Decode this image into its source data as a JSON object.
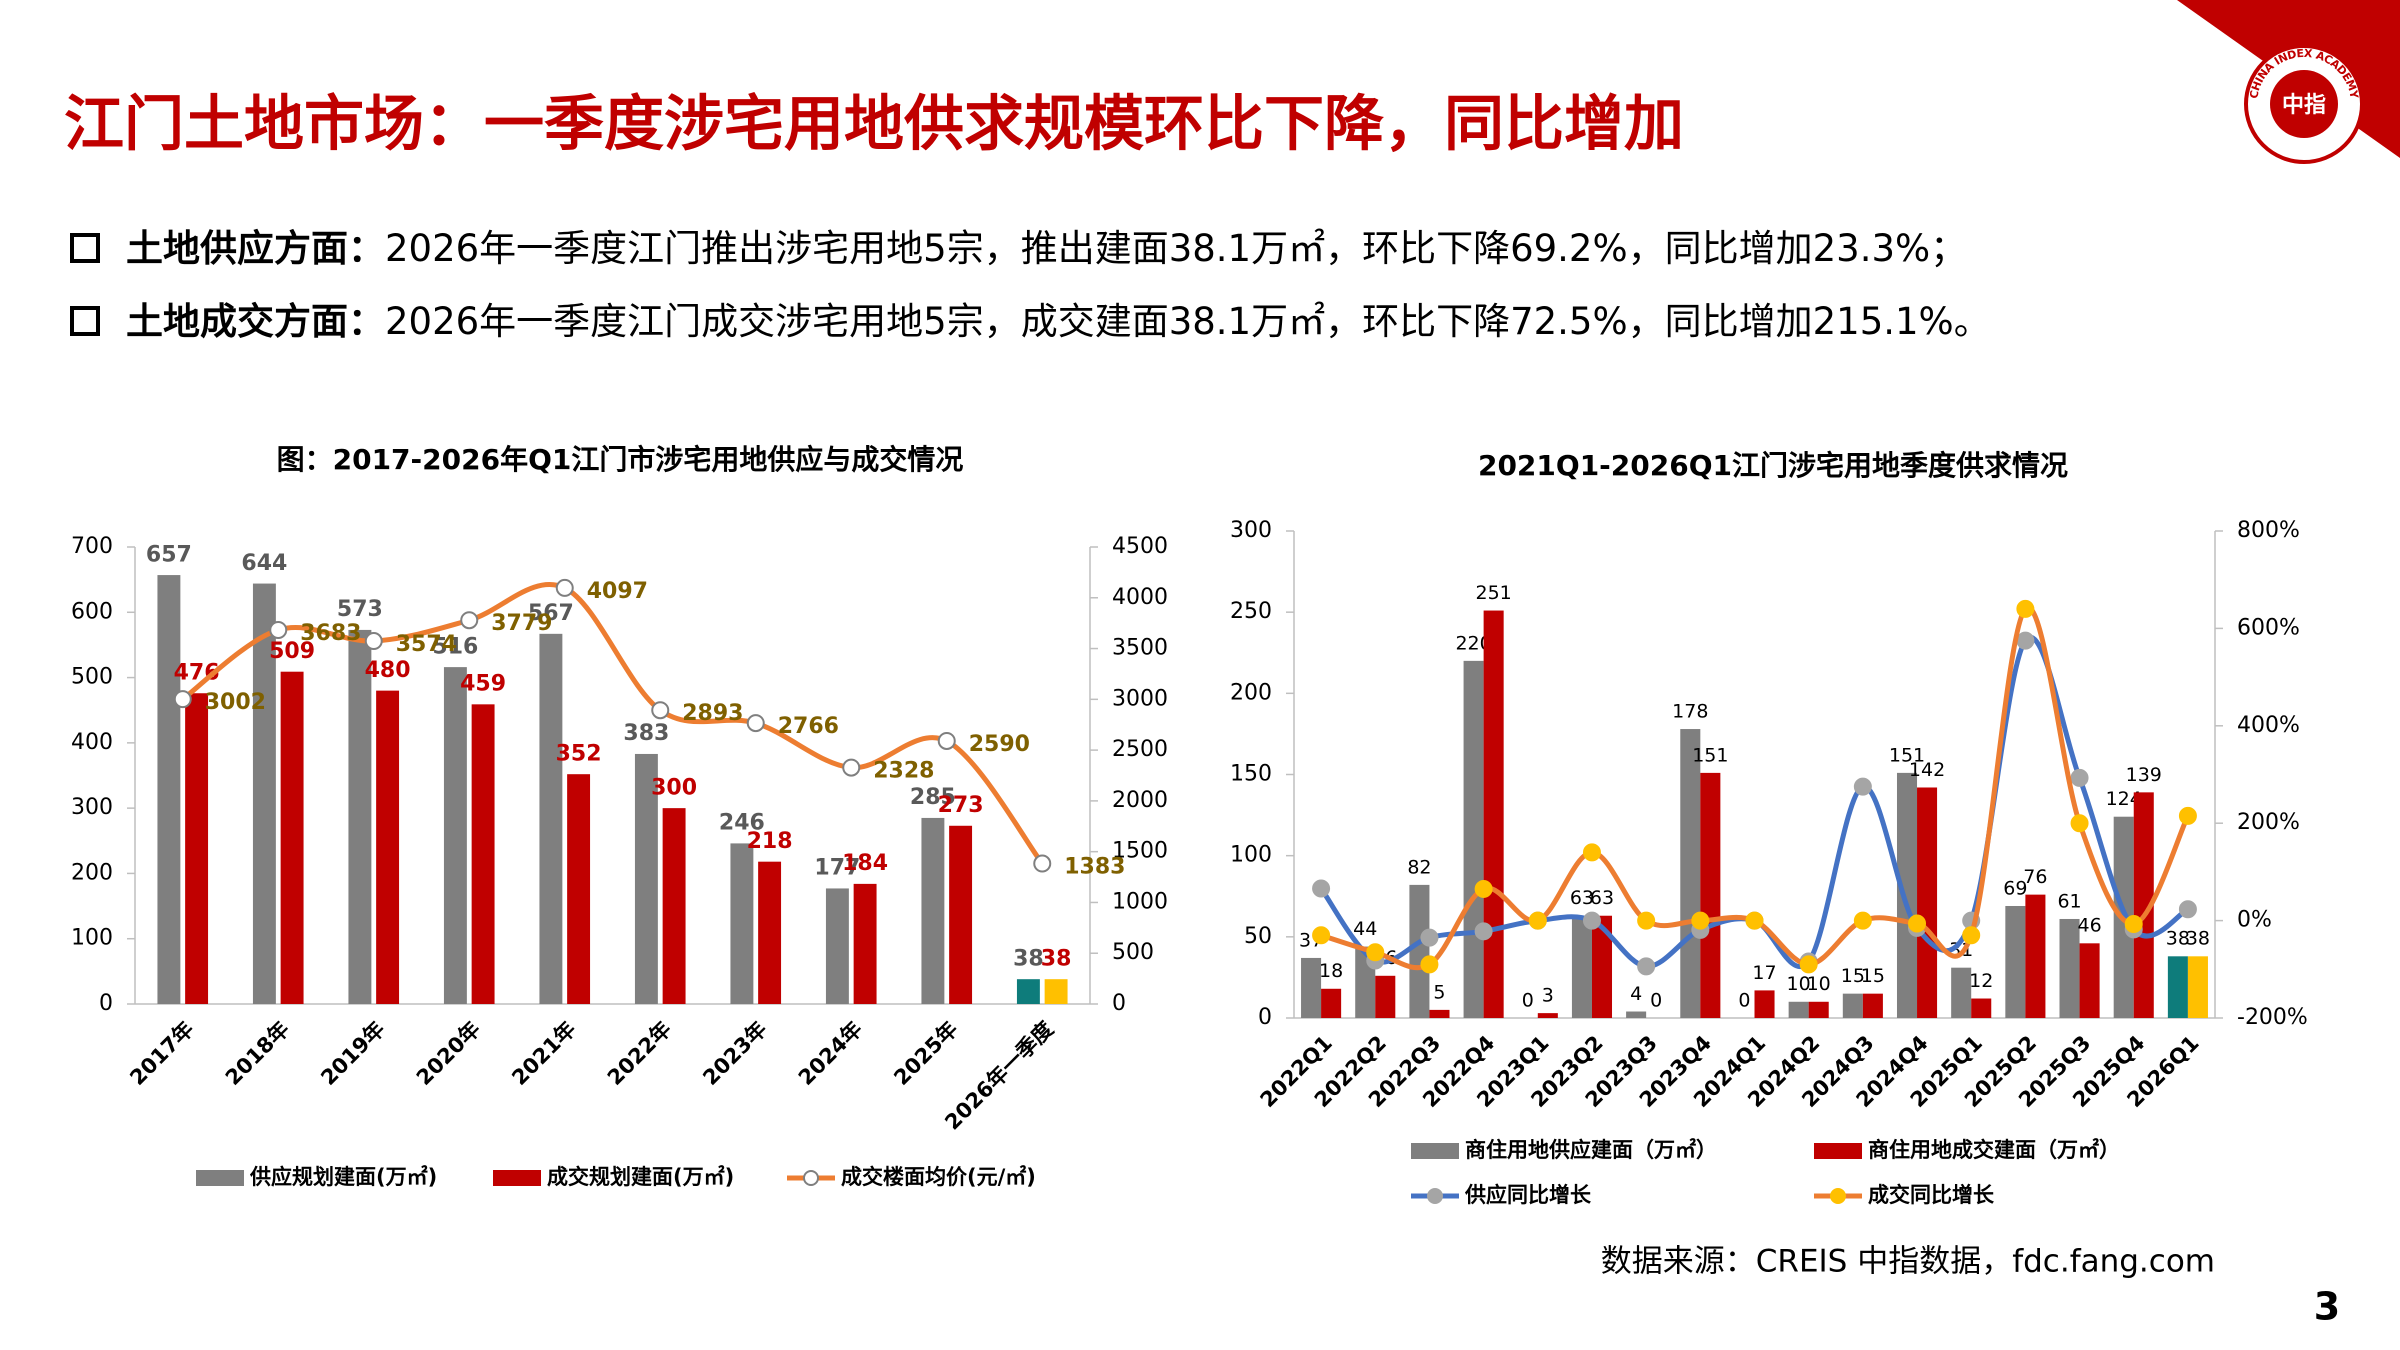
{
  "title": "江门土地市场：一季度涉宅用地供求规模环比下降，同比增加",
  "bullets": [
    {
      "label": "土地供应方面：",
      "text": "2026年一季度江门推出涉宅用地5宗，推出建面38.1万㎡，环比下降69.2%，同比增加23.3%；"
    },
    {
      "label": "土地成交方面：",
      "text": "2026年一季度江门成交涉宅用地5宗，成交建面38.1万㎡，环比下降72.5%，同比增加215.1%。"
    }
  ],
  "source": "数据来源：CREIS 中指数据，fdc.fang.com",
  "page_number": "3",
  "logo": {
    "name": "中指",
    "ring": "CHINA INDEX ACADEMY"
  },
  "chart_data": [
    {
      "type": "bar",
      "title": "图：2017-2026年Q1江门市涉宅用地供应与成交情况",
      "categories": [
        "2017年",
        "2018年",
        "2019年",
        "2020年",
        "2021年",
        "2022年",
        "2023年",
        "2024年",
        "2025年",
        "2026年一季度"
      ],
      "series": [
        {
          "name": "供应规划建面(万㎡)",
          "type": "bar",
          "color": "#7f7f7f",
          "colors": [
            "#7f7f7f",
            "#7f7f7f",
            "#7f7f7f",
            "#7f7f7f",
            "#7f7f7f",
            "#7f7f7f",
            "#7f7f7f",
            "#7f7f7f",
            "#7f7f7f",
            "#0e7c7b"
          ],
          "label_color": "#595959",
          "show_labels": true,
          "values": [
            657,
            644,
            573,
            516,
            567,
            383,
            246,
            177,
            285,
            38
          ]
        },
        {
          "name": "成交规划建面(万㎡)",
          "type": "bar",
          "color": "#c00000",
          "colors": [
            "#c00000",
            "#c00000",
            "#c00000",
            "#c00000",
            "#c00000",
            "#c00000",
            "#c00000",
            "#c00000",
            "#c00000",
            "#ffc000"
          ],
          "label_color": "#c00000",
          "show_labels": true,
          "values": [
            476,
            509,
            480,
            459,
            352,
            300,
            218,
            184,
            273,
            38
          ]
        },
        {
          "name": "成交楼面均价(元/㎡)",
          "type": "line",
          "axis": "y2",
          "color": "#ed7d31",
          "marker_color": "#ffffff",
          "label_color": "#7f6000",
          "show_labels": true,
          "values": [
            3002,
            3683,
            3574,
            3779,
            4097,
            2893,
            2766,
            2328,
            2590,
            1383
          ]
        }
      ],
      "ylim": [
        0,
        700
      ],
      "yticks": [
        0,
        100,
        200,
        300,
        400,
        500,
        600,
        700
      ],
      "y2lim": [
        0,
        4500
      ],
      "y2ticks": [
        0,
        500,
        1000,
        1500,
        2000,
        2500,
        3000,
        3500,
        4000,
        4500
      ],
      "grid": false
    },
    {
      "type": "bar",
      "title": "2021Q1-2026Q1江门涉宅用地季度供求情况",
      "categories": [
        "2022Q1",
        "2022Q2",
        "2022Q3",
        "2022Q4",
        "2023Q1",
        "2023Q2",
        "2023Q3",
        "2023Q4",
        "2024Q1",
        "2024Q2",
        "2024Q3",
        "2024Q4",
        "2025Q1",
        "2025Q2",
        "2025Q3",
        "2025Q4",
        "2026Q1"
      ],
      "series": [
        {
          "name": "商住用地供应建面（万㎡）",
          "type": "bar",
          "color": "#7f7f7f",
          "colors": [
            "#7f7f7f",
            "#7f7f7f",
            "#7f7f7f",
            "#7f7f7f",
            "#7f7f7f",
            "#7f7f7f",
            "#7f7f7f",
            "#7f7f7f",
            "#7f7f7f",
            "#7f7f7f",
            "#7f7f7f",
            "#7f7f7f",
            "#7f7f7f",
            "#7f7f7f",
            "#7f7f7f",
            "#7f7f7f",
            "#0e7c7b"
          ],
          "label_color": "#000000",
          "show_labels": true,
          "values": [
            37,
            44,
            82,
            220,
            0,
            63,
            4,
            178,
            0,
            10,
            15,
            151,
            31,
            69,
            61,
            124,
            38
          ]
        },
        {
          "name": "商住用地成交建面（万㎡）",
          "type": "bar",
          "color": "#c00000",
          "colors": [
            "#c00000",
            "#c00000",
            "#c00000",
            "#c00000",
            "#c00000",
            "#c00000",
            "#c00000",
            "#c00000",
            "#c00000",
            "#c00000",
            "#c00000",
            "#c00000",
            "#c00000",
            "#c00000",
            "#c00000",
            "#c00000",
            "#ffc000"
          ],
          "label_color": "#000000",
          "show_labels": true,
          "values": [
            18,
            26,
            5,
            251,
            3,
            63,
            0,
            151,
            17,
            10,
            15,
            142,
            12,
            76,
            46,
            139,
            38
          ]
        },
        {
          "name": "供应同比增长",
          "type": "line",
          "axis": "y2",
          "color": "#4472c4",
          "marker_color": "#a5a5a5",
          "show_labels": false,
          "values": [
            66,
            -82,
            -35,
            -22,
            0,
            0,
            -94,
            -19,
            0,
            -84,
            275,
            -15,
            0,
            575,
            293,
            -18,
            23.3
          ]
        },
        {
          "name": "成交同比增长",
          "type": "line",
          "axis": "y2",
          "color": "#ed7d31",
          "marker_color": "#ffc000",
          "show_labels": false,
          "values": [
            -30,
            -65,
            -90,
            65,
            0,
            140,
            0,
            0,
            0,
            -90,
            0,
            -6,
            -30,
            640,
            200,
            -7,
            215.1
          ]
        }
      ],
      "ylim": [
        0,
        300
      ],
      "yticks": [
        0,
        50,
        100,
        150,
        200,
        250,
        300
      ],
      "y2lim": [
        -200,
        800
      ],
      "y2ticks": [
        {
          "value": -200,
          "label": "-200%"
        },
        {
          "value": 0,
          "label": "0%"
        },
        {
          "value": 200,
          "label": "200%"
        },
        {
          "value": 400,
          "label": "400%"
        },
        {
          "value": 600,
          "label": "600%"
        },
        {
          "value": 800,
          "label": "800%"
        }
      ],
      "grid": false
    }
  ]
}
